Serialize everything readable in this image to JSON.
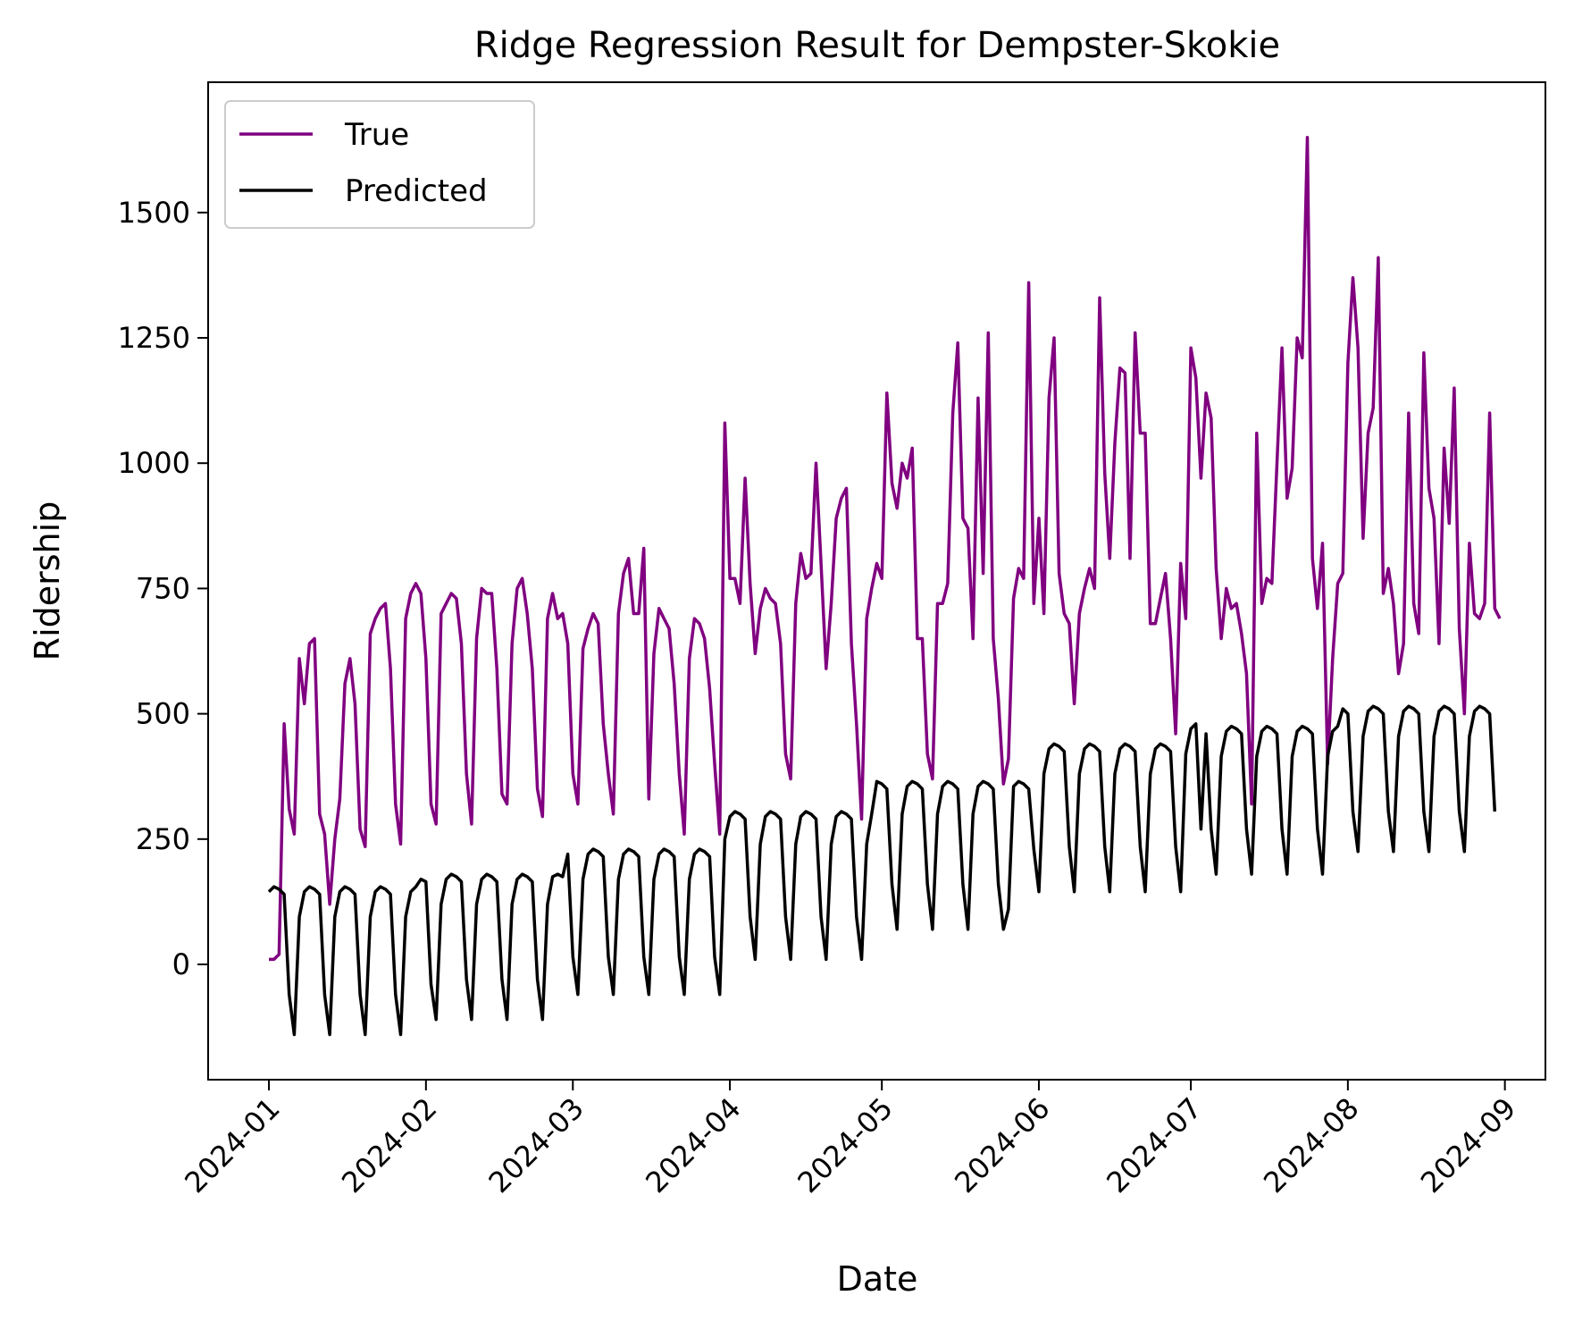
{
  "chart_data": {
    "type": "line",
    "title": "Ridge Regression Result for Dempster-Skokie",
    "xlabel": "Date",
    "ylabel": "Ridership",
    "xlim": [
      "2023-12-20",
      "2024-09-09"
    ],
    "ylim": [
      -230,
      1760
    ],
    "grid": false,
    "legend_position": "upper left",
    "x_ticks": [
      "2024-01-01",
      "2024-02-01",
      "2024-03-01",
      "2024-04-01",
      "2024-05-01",
      "2024-06-01",
      "2024-07-01",
      "2024-08-01",
      "2024-09-01"
    ],
    "x_tick_labels": [
      "2024-01",
      "2024-02",
      "2024-03",
      "2024-04",
      "2024-05",
      "2024-06",
      "2024-07",
      "2024-08",
      "2024-09"
    ],
    "y_ticks": [
      0,
      250,
      500,
      750,
      1000,
      1250,
      1500
    ],
    "y_tick_labels": [
      "0",
      "250",
      "500",
      "750",
      "1000",
      "1250",
      "1500"
    ],
    "start_date": "2024-01-01",
    "series": [
      {
        "name": "True",
        "color": "#800080",
        "values": [
          10,
          10,
          20,
          480,
          310,
          260,
          610,
          520,
          640,
          650,
          300,
          260,
          120,
          250,
          330,
          560,
          610,
          520,
          270,
          235,
          660,
          690,
          710,
          720,
          590,
          320,
          240,
          690,
          740,
          760,
          740,
          610,
          320,
          280,
          700,
          720,
          740,
          730,
          640,
          380,
          280,
          650,
          750,
          740,
          740,
          590,
          340,
          320,
          640,
          750,
          770,
          700,
          590,
          350,
          295,
          690,
          740,
          690,
          700,
          640,
          380,
          320,
          630,
          670,
          700,
          680,
          480,
          380,
          300,
          700,
          780,
          810,
          700,
          700,
          830,
          330,
          620,
          710,
          690,
          670,
          560,
          380,
          260,
          610,
          690,
          680,
          650,
          550,
          400,
          260,
          1080,
          770,
          770,
          720,
          970,
          760,
          620,
          710,
          750,
          730,
          720,
          640,
          420,
          370,
          720,
          820,
          770,
          780,
          1000,
          800,
          590,
          720,
          890,
          930,
          950,
          640,
          480,
          290,
          690,
          750,
          800,
          770,
          1140,
          960,
          910,
          1000,
          970,
          1030,
          650,
          650,
          420,
          370,
          720,
          720,
          760,
          1100,
          1240,
          890,
          870,
          650,
          1130,
          780,
          1260,
          650,
          530,
          360,
          410,
          730,
          790,
          770,
          1360,
          720,
          890,
          700,
          1130,
          1250,
          780,
          700,
          680,
          520,
          700,
          750,
          790,
          750,
          1330,
          980,
          810,
          1040,
          1190,
          1180,
          810,
          1260,
          1060,
          1060,
          680,
          680,
          730,
          780,
          650,
          460,
          800,
          690,
          1230,
          1170,
          970,
          1140,
          1090,
          790,
          650,
          750,
          710,
          720,
          660,
          580,
          320,
          1060,
          720,
          770,
          760,
          1000,
          1230,
          930,
          990,
          1250,
          1210,
          1650,
          810,
          710,
          840,
          400,
          610,
          760,
          780,
          1200,
          1370,
          1230,
          850,
          1060,
          1110,
          1410,
          740,
          790,
          720,
          580,
          640,
          1100,
          720,
          660,
          1220,
          950,
          890,
          640,
          1030,
          880,
          1150,
          670,
          500,
          840,
          700,
          690,
          720,
          1100,
          710,
          690
        ]
      },
      {
        "name": "Predicted",
        "color": "#000000",
        "values": [
          145,
          155,
          150,
          140,
          -60,
          -140,
          95,
          145,
          155,
          150,
          140,
          -60,
          -140,
          95,
          145,
          155,
          150,
          140,
          -60,
          -140,
          95,
          145,
          155,
          150,
          140,
          -60,
          -140,
          95,
          145,
          155,
          170,
          165,
          -40,
          -110,
          120,
          170,
          180,
          175,
          165,
          -30,
          -110,
          120,
          170,
          180,
          175,
          165,
          -30,
          -110,
          120,
          170,
          180,
          175,
          165,
          -30,
          -110,
          120,
          175,
          180,
          175,
          220,
          15,
          -60,
          170,
          220,
          230,
          225,
          215,
          15,
          -60,
          170,
          220,
          230,
          225,
          215,
          15,
          -60,
          170,
          220,
          230,
          225,
          215,
          15,
          -60,
          170,
          220,
          230,
          225,
          215,
          15,
          -60,
          250,
          295,
          305,
          300,
          290,
          95,
          10,
          240,
          295,
          305,
          300,
          290,
          95,
          10,
          240,
          295,
          305,
          300,
          290,
          95,
          10,
          240,
          295,
          305,
          300,
          290,
          95,
          10,
          240,
          300,
          365,
          360,
          350,
          160,
          70,
          300,
          355,
          365,
          360,
          350,
          160,
          70,
          300,
          355,
          365,
          360,
          350,
          160,
          70,
          300,
          355,
          365,
          360,
          350,
          160,
          70,
          110,
          355,
          365,
          360,
          350,
          230,
          145,
          380,
          430,
          440,
          435,
          425,
          235,
          145,
          380,
          430,
          440,
          435,
          425,
          235,
          145,
          380,
          430,
          440,
          435,
          425,
          235,
          145,
          380,
          430,
          440,
          435,
          425,
          235,
          145,
          420,
          470,
          480,
          270,
          460,
          270,
          180,
          415,
          465,
          475,
          470,
          460,
          270,
          180,
          415,
          465,
          475,
          470,
          460,
          270,
          180,
          415,
          465,
          475,
          470,
          460,
          270,
          180,
          415,
          465,
          475,
          510,
          500,
          305,
          225,
          455,
          505,
          515,
          510,
          500,
          305,
          225,
          455,
          505,
          515,
          510,
          500,
          305,
          225,
          455,
          505,
          515,
          510,
          500,
          305,
          225,
          455,
          505,
          515,
          510,
          500,
          305
        ]
      }
    ]
  }
}
